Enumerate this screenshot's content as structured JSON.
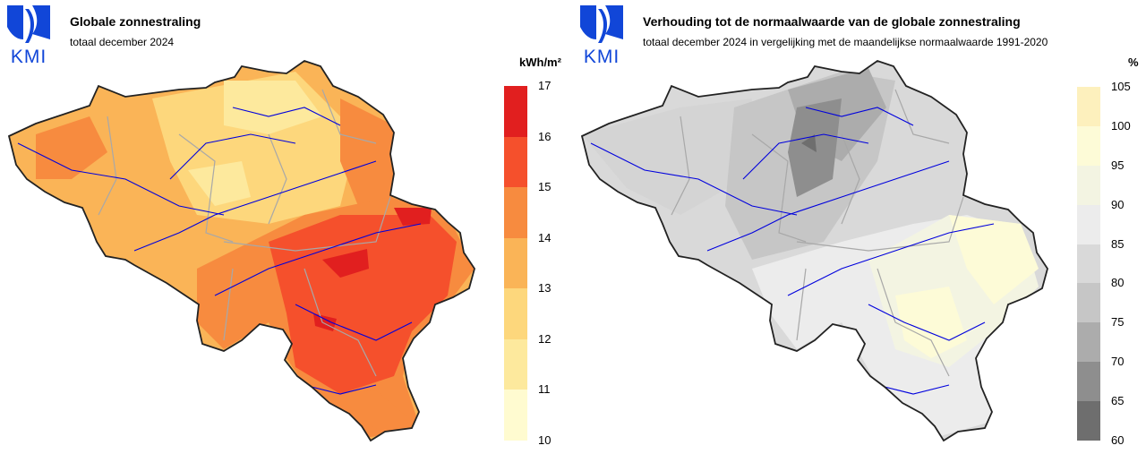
{
  "left": {
    "logo_text": "KMI",
    "title": "Globale zonnestraling",
    "subtitle": "totaal december 2024",
    "legend": {
      "unit": "kWh/m²",
      "labels": [
        "17",
        "16",
        "15",
        "14",
        "13",
        "12",
        "11",
        "10"
      ],
      "colors": [
        "#e11f1f",
        "#f5502c",
        "#f78b3f",
        "#fab457",
        "#fdd77c",
        "#fde99d",
        "#fffbd0"
      ]
    }
  },
  "right": {
    "logo_text": "KMI",
    "title": "Verhouding tot de normaalwaarde van de globale zonnestraling",
    "subtitle": "totaal december 2024 in vergelijking met de maandelijkse normaalwaarde 1991-2020",
    "legend": {
      "unit": "%",
      "labels": [
        "105",
        "100",
        "95",
        "90",
        "85",
        "80",
        "75",
        "70",
        "65",
        "60"
      ],
      "colors": [
        "#fdf0bd",
        "#fdfbd7",
        "#f3f4e2",
        "#ececec",
        "#d9d9d9",
        "#c6c6c6",
        "#acacac",
        "#8e8e8e",
        "#6e6e6e"
      ]
    }
  },
  "colors": {
    "logo_blue": "#1146d8",
    "river": "#0000dd",
    "border": "#222222",
    "province": "#a8a8a8"
  }
}
